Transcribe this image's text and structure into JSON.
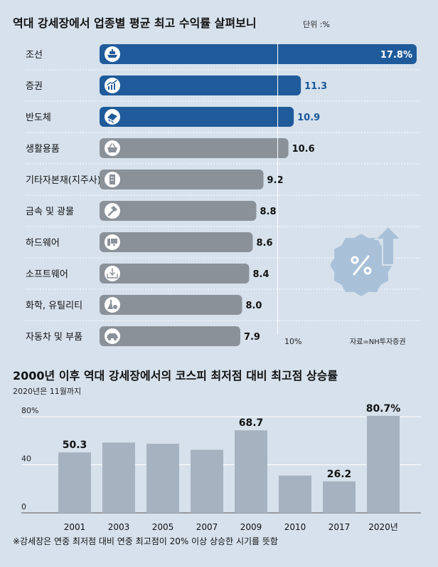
{
  "colors": {
    "background": "#d6e1ec",
    "highlight_bar": "#1f5b9a",
    "highlight_text": "#1a5799",
    "normal_bar": "#8a9199",
    "column": "#a6b2bf",
    "icon_circle": "#ffffff",
    "badge": "#a9c1d8"
  },
  "chart_data": [
    {
      "type": "bar",
      "orientation": "horizontal",
      "title": "역대 강세장에서 업종별 평균 최고 수익률 살펴보니",
      "unit_label": "단위 :%",
      "categories": [
        "조선",
        "증권",
        "반도체",
        "생활용품",
        "기타자본재(지주사)",
        "금속 및 광물",
        "하드웨어",
        "소프트웨어",
        "화학, 유틸리티",
        "자동차 및 부품"
      ],
      "values": [
        17.8,
        11.3,
        10.9,
        10.6,
        9.2,
        8.8,
        8.6,
        8.4,
        8.0,
        7.9
      ],
      "value_labels": [
        "17.8%",
        "11.3",
        "10.9",
        "10.6",
        "9.2",
        "8.8",
        "8.6",
        "8.4",
        "8.0",
        "7.9"
      ],
      "highlighted": [
        true,
        true,
        true,
        false,
        false,
        false,
        false,
        false,
        false,
        false
      ],
      "icons": [
        "ship-icon",
        "stock-chart-icon",
        "chip-icon",
        "basket-icon",
        "building-icon",
        "hammer-icon",
        "computer-icon",
        "download-tray-icon",
        "flask-icon",
        "car-icon"
      ],
      "reference_line": {
        "value": 10,
        "label": "10%"
      },
      "xlim": [
        0,
        17.8
      ],
      "source": "자료=NH투자증권",
      "badge_icon": "percent-up-arrow-icon"
    },
    {
      "type": "bar",
      "title": "2000년 이후 역대 강세장에서의 코스피 최저점 대비 최고점 상승률",
      "subtitle": "2020년은 11월까지",
      "categories": [
        "2001",
        "2003",
        "2005",
        "2007",
        "2009",
        "2010",
        "2017",
        "2020년"
      ],
      "values": [
        50.3,
        58.5,
        57.5,
        52.5,
        68.7,
        31.0,
        26.2,
        80.7
      ],
      "labels": [
        "50.3",
        "",
        "",
        "",
        "68.7",
        "",
        "26.2",
        "80.7%"
      ],
      "yticks": [
        "0",
        "40",
        "80%"
      ],
      "ytick_values": [
        0,
        40,
        80
      ],
      "ylim": [
        0,
        80
      ],
      "footnote": "※강세장은 연중 최저점 대비 연중 최고점이 20% 이상 상승한 시기를 뜻함"
    }
  ]
}
